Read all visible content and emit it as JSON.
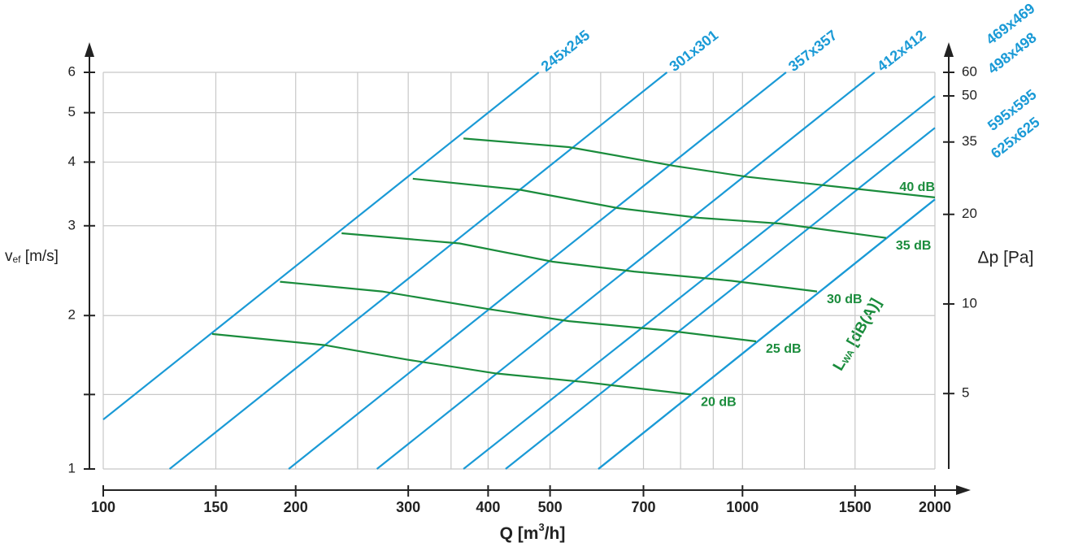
{
  "chart_data": {
    "type": "line",
    "xlabel": [
      "Q [m",
      "3",
      "/h]"
    ],
    "ylabel": [
      "v",
      "ef",
      " [m/s]"
    ],
    "y2label": "Δp [Pa]",
    "legend_title": [
      "L",
      "WA",
      " [dB(A)]"
    ],
    "log_x": true,
    "log_y": true,
    "xlim": [
      100,
      2000
    ],
    "ylim": [
      1,
      6
    ],
    "y2lim": [
      2.79,
      60
    ],
    "xticks": [
      100,
      150,
      200,
      300,
      400,
      500,
      700,
      1000,
      1500,
      2000
    ],
    "yticks": [
      1,
      2,
      3,
      4,
      5,
      6
    ],
    "y2ticks": [
      5,
      10,
      20,
      35,
      50,
      60
    ],
    "xgrid": [
      100,
      150,
      200,
      250,
      300,
      350,
      400,
      500,
      600,
      700,
      800,
      900,
      1000,
      1250,
      1500,
      2000
    ],
    "ygrid": [
      1,
      1.4,
      2,
      3,
      4,
      5,
      6
    ],
    "grid_color": "#c8c8c8",
    "series": [
      {
        "name": "245x245",
        "color": "#1a9ad6",
        "x": [
          100,
          480
        ],
        "values": [
          1.25,
          6
        ]
      },
      {
        "name": "301x301",
        "color": "#1a9ad6",
        "x": [
          127,
          762
        ],
        "values": [
          1,
          6
        ]
      },
      {
        "name": "357x357",
        "color": "#1a9ad6",
        "x": [
          195,
          1170
        ],
        "values": [
          1,
          6
        ]
      },
      {
        "name": "412x412",
        "color": "#1a9ad6",
        "x": [
          268,
          1610
        ],
        "values": [
          1,
          6
        ]
      },
      {
        "name": "469x469",
        "color": "#1a9ad6",
        "x": [
          366,
          2000
        ],
        "values": [
          1,
          5.39
        ]
      },
      {
        "name": "498x498",
        "color": "#1a9ad6",
        "x": [
          426,
          2000
        ],
        "values": [
          1,
          4.67
        ]
      },
      {
        "name": "595x595",
        "color": "#1a9ad6",
        "x": [
          595,
          2000
        ],
        "values": [
          1,
          3.38
        ]
      },
      {
        "name": "625x625",
        "color": "#1a9ad6",
        "x": [
          595,
          2000
        ],
        "values": [
          1,
          3.38
        ]
      },
      {
        "name": "40 dB",
        "color": "#1a8c3c",
        "x": [
          366,
          535,
          783,
          1020,
          2000
        ],
        "values": [
          4.45,
          4.28,
          3.93,
          3.74,
          3.41
        ]
      },
      {
        "name": "35 dB",
        "color": "#1a8c3c",
        "x": [
          305,
          449,
          638,
          855,
          1146,
          1677
        ],
        "values": [
          3.71,
          3.53,
          3.25,
          3.11,
          3.03,
          2.84
        ]
      },
      {
        "name": "30 dB",
        "color": "#1a8c3c",
        "x": [
          236,
          361,
          505,
          677,
          962,
          1308
        ],
        "values": [
          2.9,
          2.77,
          2.55,
          2.44,
          2.34,
          2.23
        ]
      },
      {
        "name": "25 dB",
        "color": "#1a8c3c",
        "x": [
          189,
          273,
          400,
          535,
          761,
          1050
        ],
        "values": [
          2.33,
          2.23,
          2.06,
          1.95,
          1.87,
          1.78
        ]
      },
      {
        "name": "20 dB",
        "color": "#1a8c3c",
        "x": [
          148,
          222,
          298,
          411,
          568,
          831
        ],
        "values": [
          1.84,
          1.75,
          1.64,
          1.54,
          1.48,
          1.4
        ]
      }
    ]
  }
}
